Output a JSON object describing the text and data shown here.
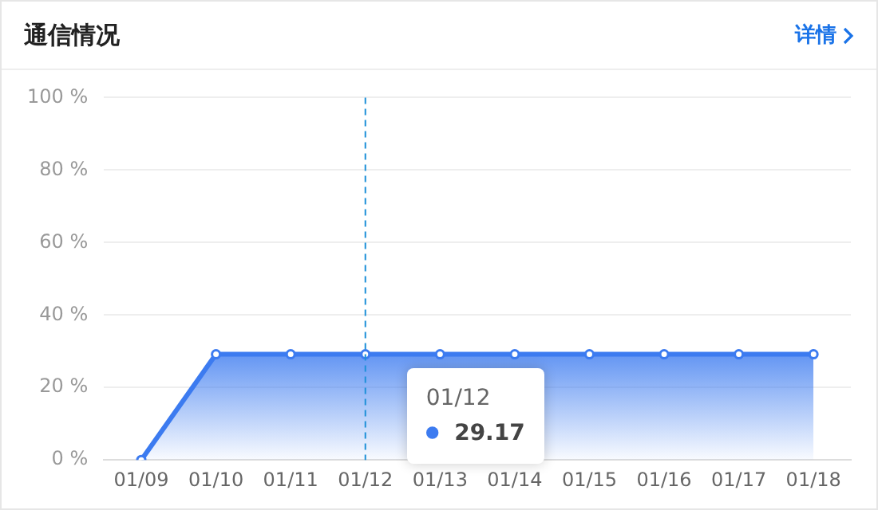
{
  "chart_data": {
    "type": "area",
    "title": "通信情况",
    "categories": [
      "01/09",
      "01/10",
      "01/11",
      "01/12",
      "01/13",
      "01/14",
      "01/15",
      "01/16",
      "01/17",
      "01/18"
    ],
    "series": [
      {
        "color": "#3c7bf0",
        "values": [
          0,
          29.17,
          29.17,
          29.17,
          29.17,
          29.17,
          29.17,
          29.17,
          29.17,
          29.17
        ]
      }
    ],
    "ylim": [
      0,
      100
    ],
    "yticks": [
      {
        "value": 0,
        "label": "0 %"
      },
      {
        "value": 20,
        "label": "20 %"
      },
      {
        "value": 40,
        "label": "40 %"
      },
      {
        "value": 60,
        "label": "60 %"
      },
      {
        "value": 80,
        "label": "80 %"
      },
      {
        "value": 100,
        "label": "100 %"
      }
    ],
    "grid": "y",
    "legend": false,
    "marker": "circle",
    "line_style": "solid",
    "ref_lines": [
      {
        "axis": "x",
        "value": "01/12",
        "color": "#1e90d8",
        "line_style": "dashed"
      }
    ],
    "annotations": [
      "详情",
      "01/12",
      "29.17"
    ]
  }
}
